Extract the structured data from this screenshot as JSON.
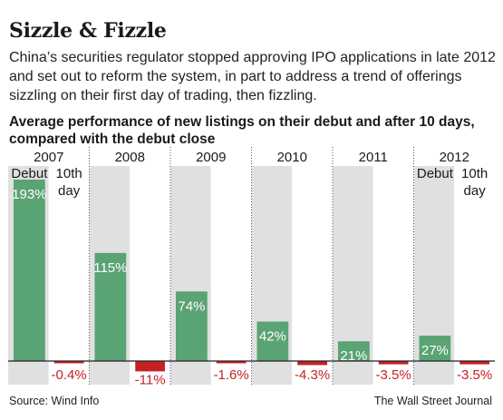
{
  "header": {
    "title": "Sizzle & Fizzle",
    "subtitle": "China’s securities regulator stopped approving IPO applications in late 2012 and set out to reform the system, in part to address a trend of offerings sizzling on their first day of trading, then fizzling.",
    "chart_label": "Average performance of new listings on their debut and after 10 days, compared with the debut close"
  },
  "chart_data": {
    "type": "bar",
    "categories": [
      "2007",
      "2008",
      "2009",
      "2010",
      "2011",
      "2012"
    ],
    "series": [
      {
        "name": "Debut",
        "values": [
          193,
          115,
          74,
          42,
          21,
          27
        ],
        "labels": [
          "193%",
          "115%",
          "74%",
          "42%",
          "21%",
          "27%"
        ]
      },
      {
        "name": "10th day",
        "values": [
          -0.4,
          -11,
          -1.6,
          -4.3,
          -3.5,
          -3.5
        ],
        "labels": [
          "-0.4%",
          "-11%",
          "-1.6%",
          "-4.3%",
          "-3.5%",
          "-3.5%"
        ]
      }
    ],
    "series_legend": [
      "Debut",
      "10th day"
    ],
    "legend_placement": "above first and last year panels",
    "colors": {
      "positive": "#5aa374",
      "negative": "#c52026",
      "debut_panel": "#e0e0e0",
      "tenth_panel": "#ffffff",
      "positive_label": "#ffffff",
      "negative_label": "#c52026"
    },
    "grid": false
  },
  "footer": {
    "source": "Source: Wind Info",
    "credit": "The Wall Street Journal"
  }
}
